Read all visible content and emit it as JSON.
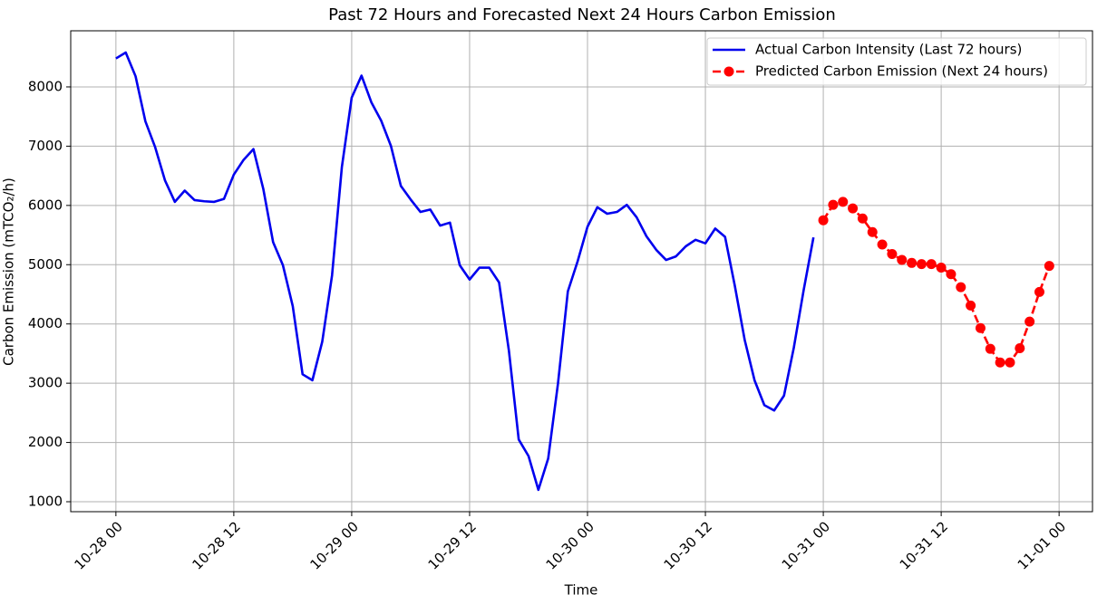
{
  "chart_data": {
    "type": "line",
    "title": "Past 72 Hours and Forecasted Next 24 Hours Carbon Emission",
    "xlabel": "Time",
    "ylabel": "Carbon Emission (mTCO₂/h)",
    "grid": true,
    "legend": "upper right",
    "xlim": [
      -4.6,
      99.4
    ],
    "ylim": [
      832,
      8947
    ],
    "xticks": [
      {
        "value": 0,
        "label": "10-28 00"
      },
      {
        "value": 12,
        "label": "10-28 12"
      },
      {
        "value": 24,
        "label": "10-29 00"
      },
      {
        "value": 36,
        "label": "10-29 12"
      },
      {
        "value": 48,
        "label": "10-30 00"
      },
      {
        "value": 60,
        "label": "10-30 12"
      },
      {
        "value": 72,
        "label": "10-31 00"
      },
      {
        "value": 84,
        "label": "10-31 12"
      },
      {
        "value": 96,
        "label": "11-01 00"
      }
    ],
    "yticks": [
      1000,
      2000,
      3000,
      4000,
      5000,
      6000,
      7000,
      8000
    ],
    "series": [
      {
        "name": "Actual Carbon Intensity (Last 72 hours)",
        "color": "#0000ee",
        "line_style": "solid",
        "x": [
          0,
          1,
          2,
          3,
          4,
          5,
          6,
          7,
          8,
          9,
          10,
          11,
          12,
          13,
          14,
          15,
          16,
          17,
          18,
          19,
          20,
          21,
          22,
          23,
          24,
          25,
          26,
          27,
          28,
          29,
          30,
          31,
          32,
          33,
          34,
          35,
          36,
          37,
          38,
          39,
          40,
          41,
          42,
          43,
          44,
          45,
          46,
          47,
          48,
          49,
          50,
          51,
          52,
          53,
          54,
          55,
          56,
          57,
          58,
          59,
          60,
          61,
          62,
          63,
          64,
          65,
          66,
          67,
          68,
          69,
          70,
          71
        ],
        "values": [
          8480,
          8580,
          8180,
          7420,
          6980,
          6420,
          6060,
          6250,
          6090,
          6070,
          6060,
          6110,
          6520,
          6770,
          6950,
          6280,
          5380,
          4990,
          4300,
          3150,
          3050,
          3700,
          4820,
          6650,
          7820,
          8190,
          7740,
          7430,
          7000,
          6330,
          6100,
          5890,
          5930,
          5660,
          5710,
          4990,
          4750,
          4950,
          4950,
          4700,
          3550,
          2050,
          1770,
          1200,
          1730,
          3000,
          4550,
          5060,
          5640,
          5970,
          5860,
          5890,
          6010,
          5800,
          5480,
          5250,
          5080,
          5140,
          5310,
          5420,
          5360,
          5610,
          5470,
          4640,
          3730,
          3050,
          2630,
          2540,
          2790,
          3600,
          4570,
          5460
        ]
      },
      {
        "name": "Predicted Carbon Emission (Next 24 hours)",
        "color": "#ff0000",
        "line_style": "dashed",
        "marker": "circle",
        "x": [
          72,
          73,
          74,
          75,
          76,
          77,
          78,
          79,
          80,
          81,
          82,
          83,
          84,
          85,
          86,
          87,
          88,
          89,
          90,
          91,
          92,
          93,
          94,
          95
        ],
        "values": [
          5750,
          6010,
          6060,
          5950,
          5780,
          5550,
          5340,
          5180,
          5080,
          5030,
          5010,
          5010,
          4950,
          4840,
          4620,
          4310,
          3930,
          3580,
          3350,
          3350,
          3590,
          4040,
          4540,
          4980
        ]
      }
    ]
  }
}
